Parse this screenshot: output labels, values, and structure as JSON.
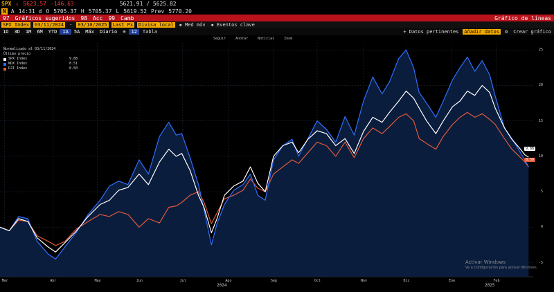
{
  "header": {
    "ticker": "SPX",
    "last": "5623.57",
    "change": "-146.63",
    "row1_extra": "5621.91 / 5625.82",
    "time_label": "A",
    "time": "14:31 d",
    "open_label": "O",
    "open": "5705.37",
    "high_label": "H",
    "high": "5705.37",
    "low_label": "L",
    "low": "5619.52",
    "prev_label": "Prev",
    "prev": "5770.20",
    "badge": "N"
  },
  "toolbar": {
    "num97": "97",
    "graficos_sugeridos": "Gráficos sugeridos",
    "num98": "98",
    "acc": "Acc",
    "num99": "99",
    "camb": "Camb",
    "right_title": "Gráfico de líneas"
  },
  "security": {
    "field": "SPX Index",
    "start_date": "03/11/2024",
    "end_date": "03/10/2025",
    "last_px": "Last Px",
    "local_ccy": "Divisa local",
    "med_mov": "Med móv",
    "eventos": "Eventos clave",
    "sep": "-"
  },
  "periods": [
    "1D",
    "3D",
    "1M",
    "6M",
    "YTD",
    "1A",
    "5A",
    "Máx",
    "Diario"
  ],
  "active_period": "1A",
  "right_controls": {
    "datos": "Datos pertinentes",
    "edit": "Añadir datos",
    "num12": "12",
    "tabla": "Tabla",
    "crear": "Crear gráfico"
  },
  "chart_toolbar": [
    "Seguir",
    "Anotar",
    "Noticias",
    "Zoom"
  ],
  "legend": {
    "title": "Normalizado al 03/11/2024",
    "subtitle": "Último precio",
    "items": [
      {
        "name": "SPX Index",
        "value": "9.88",
        "color": "#ffffff"
      },
      {
        "name": "NDX Index",
        "value": "8.51",
        "color": "#2f6fff"
      },
      {
        "name": "DJI Index",
        "value": "8.50",
        "color": "#e05a3a"
      }
    ]
  },
  "last_tags": {
    "spx": "9.88",
    "dji": "8.50"
  },
  "watermark": {
    "line1": "Activar Windows",
    "line2": "Ve a Configuración para activar Windows."
  },
  "axis_extra": {
    "year_2024": "2024",
    "year_2025": "2025"
  },
  "chart_data": {
    "type": "area",
    "title": "Normalizado al 03/11/2024",
    "xlabel": "",
    "ylabel": "",
    "ylim": [
      -7,
      26
    ],
    "grid": true,
    "legend_position": "top-left",
    "yticks": [
      25,
      20,
      15,
      10,
      5,
      0,
      -5
    ],
    "x_ticks": [
      "Mar",
      "Abr",
      "May",
      "Jun",
      "Jul",
      "Ago",
      "Sep",
      "Oct",
      "Nov",
      "Dic",
      "Ene",
      "Feb"
    ],
    "x_tick_index": [
      5,
      57,
      105,
      150,
      197,
      246,
      295,
      342,
      392,
      438,
      487,
      535
    ],
    "x_range": [
      0,
      575
    ],
    "series": [
      {
        "name": "SPX Index",
        "color": "#ffffff",
        "points": [
          [
            0,
            0
          ],
          [
            10,
            -0.5
          ],
          [
            20,
            1.2
          ],
          [
            30,
            0.8
          ],
          [
            40,
            -1.5
          ],
          [
            52,
            -2.8
          ],
          [
            60,
            -3.5
          ],
          [
            70,
            -2.2
          ],
          [
            82,
            -0.6
          ],
          [
            95,
            1.5
          ],
          [
            108,
            3.2
          ],
          [
            118,
            3.8
          ],
          [
            128,
            5.2
          ],
          [
            138,
            5.6
          ],
          [
            150,
            7.5
          ],
          [
            160,
            6.0
          ],
          [
            172,
            9.2
          ],
          [
            182,
            11.0
          ],
          [
            190,
            10.0
          ],
          [
            196,
            10.4
          ],
          [
            205,
            8.0
          ],
          [
            214,
            4.5
          ],
          [
            220,
            2.8
          ],
          [
            228,
            -0.8
          ],
          [
            234,
            1.2
          ],
          [
            242,
            4.5
          ],
          [
            252,
            5.8
          ],
          [
            262,
            6.5
          ],
          [
            270,
            8.5
          ],
          [
            278,
            6.2
          ],
          [
            286,
            5.0
          ],
          [
            295,
            10.0
          ],
          [
            305,
            11.5
          ],
          [
            315,
            12.0
          ],
          [
            322,
            10.5
          ],
          [
            332,
            12.4
          ],
          [
            342,
            13.6
          ],
          [
            352,
            13.2
          ],
          [
            362,
            11.5
          ],
          [
            372,
            12.5
          ],
          [
            382,
            10.4
          ],
          [
            392,
            13.5
          ],
          [
            402,
            15.5
          ],
          [
            412,
            14.8
          ],
          [
            420,
            16.2
          ],
          [
            430,
            17.8
          ],
          [
            438,
            19.2
          ],
          [
            446,
            18.2
          ],
          [
            452,
            16.8
          ],
          [
            460,
            15.0
          ],
          [
            470,
            13.2
          ],
          [
            478,
            15.0
          ],
          [
            488,
            17.0
          ],
          [
            496,
            17.8
          ],
          [
            504,
            19.2
          ],
          [
            512,
            18.6
          ],
          [
            520,
            20.0
          ],
          [
            528,
            19.0
          ],
          [
            534,
            16.8
          ],
          [
            544,
            14.0
          ],
          [
            552,
            12.4
          ],
          [
            560,
            11.2
          ],
          [
            566,
            10.2
          ],
          [
            570,
            9.88
          ]
        ]
      },
      {
        "name": "NDX Index",
        "color": "#2f6fff",
        "points": [
          [
            0,
            0
          ],
          [
            10,
            -0.5
          ],
          [
            20,
            1.5
          ],
          [
            30,
            1.2
          ],
          [
            40,
            -2.0
          ],
          [
            52,
            -3.8
          ],
          [
            60,
            -4.5
          ],
          [
            70,
            -2.8
          ],
          [
            82,
            -0.8
          ],
          [
            95,
            1.8
          ],
          [
            108,
            3.8
          ],
          [
            118,
            5.8
          ],
          [
            128,
            6.5
          ],
          [
            138,
            6.0
          ],
          [
            150,
            9.5
          ],
          [
            160,
            7.5
          ],
          [
            172,
            12.8
          ],
          [
            182,
            14.8
          ],
          [
            190,
            13.0
          ],
          [
            196,
            13.2
          ],
          [
            205,
            9.8
          ],
          [
            214,
            6.0
          ],
          [
            220,
            2.5
          ],
          [
            228,
            -2.5
          ],
          [
            234,
            0.5
          ],
          [
            242,
            3.2
          ],
          [
            252,
            5.2
          ],
          [
            262,
            6.0
          ],
          [
            270,
            7.5
          ],
          [
            278,
            4.5
          ],
          [
            286,
            3.8
          ],
          [
            295,
            9.5
          ],
          [
            305,
            11.5
          ],
          [
            315,
            12.4
          ],
          [
            322,
            10.0
          ],
          [
            332,
            12.5
          ],
          [
            342,
            15.0
          ],
          [
            352,
            13.8
          ],
          [
            362,
            12.0
          ],
          [
            372,
            15.6
          ],
          [
            382,
            13.0
          ],
          [
            392,
            17.8
          ],
          [
            402,
            21.2
          ],
          [
            412,
            18.8
          ],
          [
            420,
            20.5
          ],
          [
            430,
            23.8
          ],
          [
            438,
            25.0
          ],
          [
            446,
            22.5
          ],
          [
            452,
            19.0
          ],
          [
            460,
            17.5
          ],
          [
            470,
            15.5
          ],
          [
            478,
            17.8
          ],
          [
            488,
            20.8
          ],
          [
            496,
            22.5
          ],
          [
            504,
            24.0
          ],
          [
            512,
            22.0
          ],
          [
            520,
            23.5
          ],
          [
            528,
            21.5
          ],
          [
            534,
            18.5
          ],
          [
            544,
            14.0
          ],
          [
            552,
            12.5
          ],
          [
            560,
            10.8
          ],
          [
            566,
            9.5
          ],
          [
            570,
            8.51
          ]
        ]
      },
      {
        "name": "DJI Index",
        "color": "#e05a3a",
        "points": [
          [
            0,
            0
          ],
          [
            10,
            -0.5
          ],
          [
            20,
            1.0
          ],
          [
            30,
            0.8
          ],
          [
            40,
            -1.2
          ],
          [
            52,
            -2.0
          ],
          [
            60,
            -2.6
          ],
          [
            70,
            -2.0
          ],
          [
            82,
            -0.3
          ],
          [
            95,
            0.8
          ],
          [
            108,
            1.8
          ],
          [
            118,
            1.5
          ],
          [
            128,
            2.2
          ],
          [
            138,
            1.8
          ],
          [
            150,
            0.0
          ],
          [
            160,
            1.2
          ],
          [
            172,
            0.6
          ],
          [
            182,
            2.8
          ],
          [
            190,
            3.0
          ],
          [
            196,
            3.5
          ],
          [
            205,
            4.5
          ],
          [
            214,
            5.0
          ],
          [
            220,
            3.5
          ],
          [
            228,
            0.5
          ],
          [
            234,
            2.0
          ],
          [
            242,
            4.0
          ],
          [
            252,
            4.5
          ],
          [
            262,
            5.2
          ],
          [
            270,
            6.8
          ],
          [
            278,
            5.5
          ],
          [
            286,
            5.0
          ],
          [
            295,
            7.5
          ],
          [
            305,
            8.5
          ],
          [
            315,
            9.5
          ],
          [
            322,
            9.0
          ],
          [
            332,
            10.5
          ],
          [
            342,
            12.0
          ],
          [
            352,
            11.5
          ],
          [
            362,
            10.0
          ],
          [
            372,
            12.0
          ],
          [
            382,
            9.8
          ],
          [
            392,
            12.5
          ],
          [
            402,
            14.0
          ],
          [
            412,
            13.2
          ],
          [
            420,
            14.2
          ],
          [
            430,
            15.5
          ],
          [
            438,
            16.0
          ],
          [
            446,
            15.0
          ],
          [
            452,
            12.5
          ],
          [
            460,
            11.8
          ],
          [
            470,
            11.0
          ],
          [
            478,
            12.8
          ],
          [
            488,
            14.5
          ],
          [
            496,
            15.5
          ],
          [
            504,
            16.2
          ],
          [
            512,
            15.5
          ],
          [
            520,
            16.0
          ],
          [
            528,
            15.2
          ],
          [
            534,
            14.5
          ],
          [
            544,
            12.5
          ],
          [
            552,
            11.0
          ],
          [
            560,
            10.0
          ],
          [
            566,
            9.2
          ],
          [
            570,
            8.5
          ]
        ]
      }
    ]
  }
}
